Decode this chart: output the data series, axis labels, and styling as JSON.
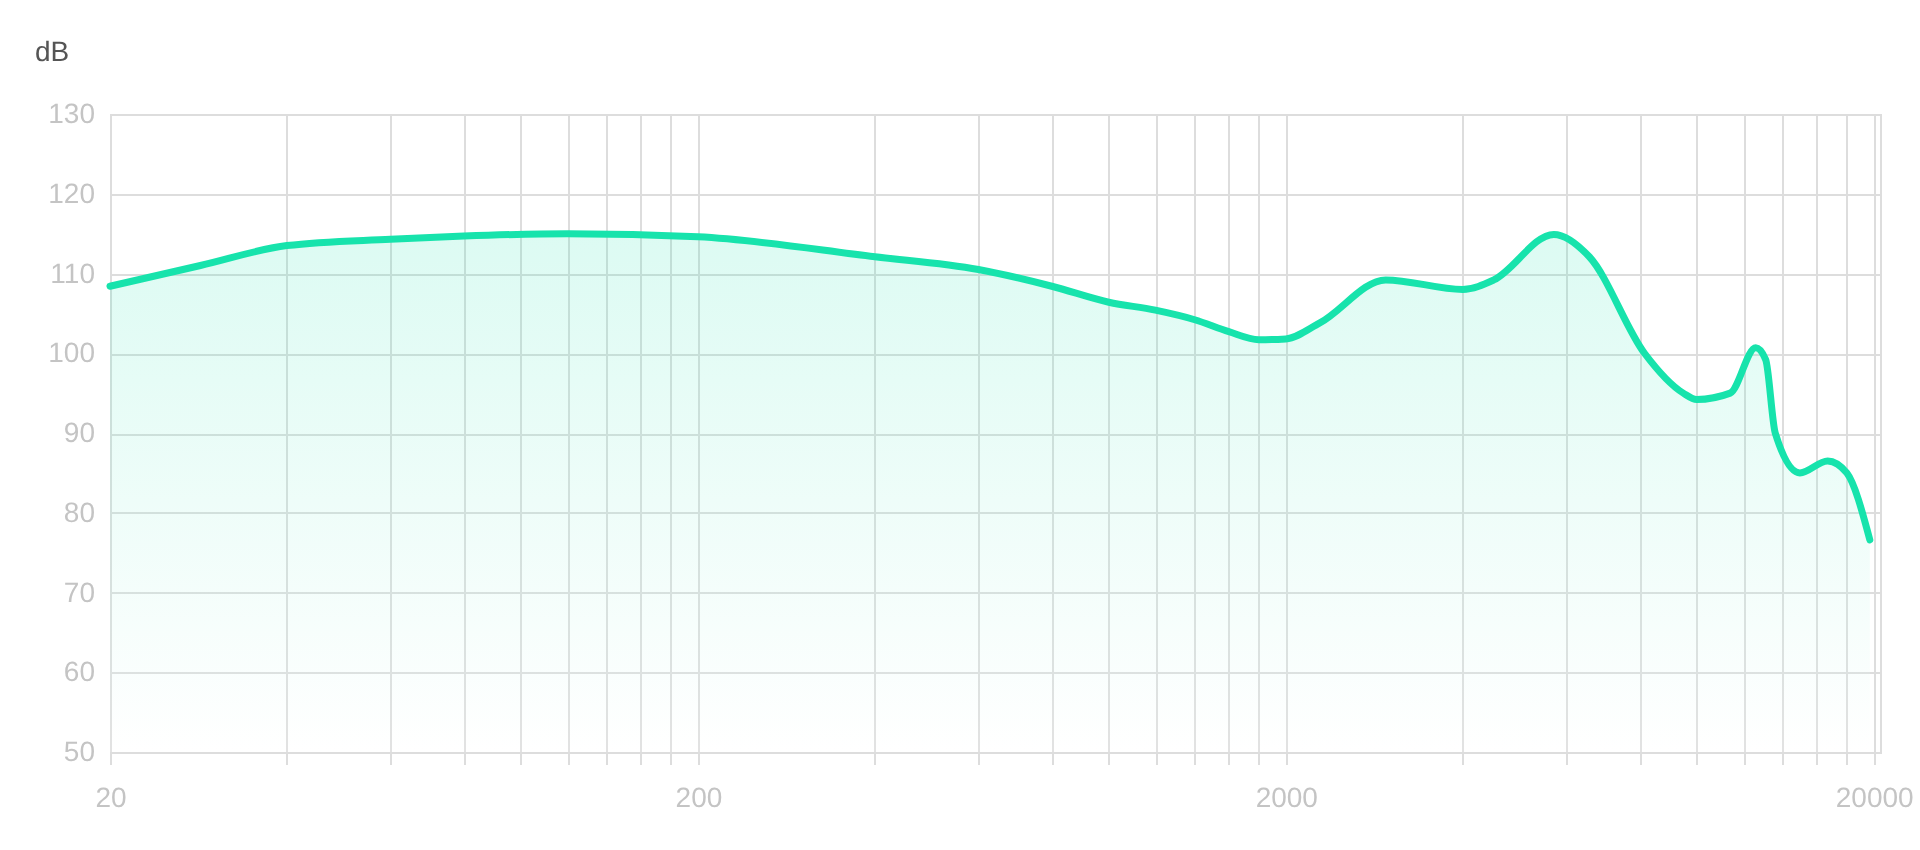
{
  "chart_data": {
    "type": "area",
    "ylabel": "dB",
    "x": [
      20,
      28.5,
      40,
      60,
      80,
      120,
      200,
      400,
      600,
      800,
      1000,
      1200,
      1400,
      1600,
      1800,
      2000,
      2285,
      2958,
      4000,
      4517,
      5714,
      6566,
      8150,
      9487,
      10000,
      11400,
      12600,
      13100,
      13600,
      14980,
      16700,
      18000,
      19700
    ],
    "series": [
      {
        "color": "#17e3ac",
        "values": [
          108.4,
          111,
          113.5,
          114.3,
          114.7,
          115,
          114.6,
          112.1,
          110.5,
          108.4,
          106.4,
          105.4,
          104.2,
          102.7,
          101.7,
          101.8,
          103.8,
          109.2,
          108,
          109.2,
          114.9,
          112.1,
          100,
          95,
          94.2,
          95,
          100.7,
          99.2,
          90,
          85,
          86.5,
          85,
          76.6
        ]
      }
    ],
    "xlim": [
      20,
      20500
    ],
    "xticks": [
      20,
      {
        "value": 40,
        "label": null
      },
      {
        "value": 60,
        "label": null
      },
      {
        "value": 80,
        "label": null
      },
      {
        "value": 100,
        "label": null
      },
      {
        "value": 120,
        "label": null
      },
      {
        "value": 140,
        "label": null
      },
      {
        "value": 160,
        "label": null
      },
      {
        "value": 180,
        "label": null
      },
      200,
      {
        "value": 400,
        "label": null
      },
      {
        "value": 600,
        "label": null
      },
      {
        "value": 800,
        "label": null
      },
      {
        "value": 1000,
        "label": null
      },
      {
        "value": 1200,
        "label": null
      },
      {
        "value": 1400,
        "label": null
      },
      {
        "value": 1600,
        "label": null
      },
      {
        "value": 1800,
        "label": null
      },
      2000,
      {
        "value": 4000,
        "label": null
      },
      {
        "value": 6000,
        "label": null
      },
      {
        "value": 8000,
        "label": null
      },
      {
        "value": 10000,
        "label": null
      },
      {
        "value": 12000,
        "label": null
      },
      {
        "value": 14000,
        "label": null
      },
      {
        "value": 16000,
        "label": null
      },
      {
        "value": 18000,
        "label": null
      },
      20000
    ],
    "ylim": [
      50,
      130
    ],
    "yticks": [
      50,
      60,
      70,
      80,
      90,
      100,
      110,
      120,
      130
    ],
    "log": "x",
    "grid": true,
    "marker": "none",
    "line_style": "solid"
  }
}
